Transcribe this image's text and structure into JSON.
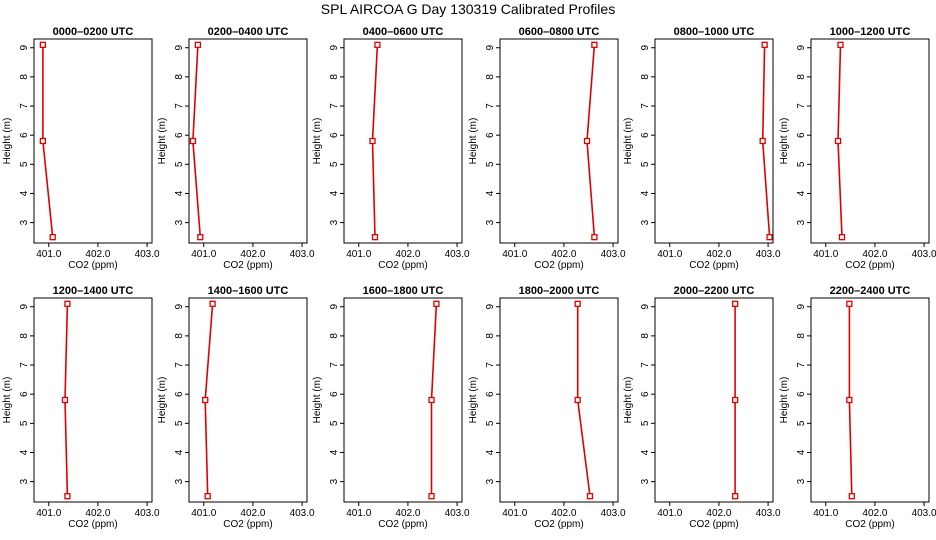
{
  "title": "SPL AIRCOA G  Day 130319  Calibrated Profiles",
  "chart_data": [
    {
      "type": "line",
      "title": "0000–0200 UTC",
      "xlabel": "CO2 (ppm)",
      "ylabel": "Height (m)",
      "xlim": [
        400.7,
        403.1
      ],
      "ylim": [
        2.3,
        9.3
      ],
      "xticks": [
        "401.0",
        "402.0",
        "403.0"
      ],
      "yticks": [
        "3",
        "4",
        "5",
        "6",
        "7",
        "8",
        "9"
      ],
      "series": [
        {
          "color": "#e00000",
          "points": [
            {
              "x": 400.88,
              "y": 9.1
            },
            {
              "x": 400.88,
              "y": 5.8
            },
            {
              "x": 401.08,
              "y": 2.5
            }
          ]
        }
      ]
    },
    {
      "type": "line",
      "title": "0200–0400 UTC",
      "xlabel": "CO2 (ppm)",
      "ylabel": "Height (m)",
      "xlim": [
        400.7,
        403.1
      ],
      "ylim": [
        2.3,
        9.3
      ],
      "xticks": [
        "401.0",
        "402.0",
        "403.0"
      ],
      "yticks": [
        "3",
        "4",
        "5",
        "6",
        "7",
        "8",
        "9"
      ],
      "series": [
        {
          "color": "#e00000",
          "points": [
            {
              "x": 400.88,
              "y": 9.1
            },
            {
              "x": 400.78,
              "y": 5.8
            },
            {
              "x": 400.93,
              "y": 2.5
            }
          ]
        }
      ]
    },
    {
      "type": "line",
      "title": "0400–0600 UTC",
      "xlabel": "CO2 (ppm)",
      "ylabel": "Height (m)",
      "xlim": [
        400.7,
        403.1
      ],
      "ylim": [
        2.3,
        9.3
      ],
      "xticks": [
        "401.0",
        "402.0",
        "403.0"
      ],
      "yticks": [
        "3",
        "4",
        "5",
        "6",
        "7",
        "8",
        "9"
      ],
      "series": [
        {
          "color": "#e00000",
          "points": [
            {
              "x": 401.38,
              "y": 9.1
            },
            {
              "x": 401.28,
              "y": 5.8
            },
            {
              "x": 401.33,
              "y": 2.5
            }
          ]
        }
      ]
    },
    {
      "type": "line",
      "title": "0600–0800 UTC",
      "xlabel": "CO2 (ppm)",
      "ylabel": "Height (m)",
      "xlim": [
        400.7,
        403.1
      ],
      "ylim": [
        2.3,
        9.3
      ],
      "xticks": [
        "401.0",
        "402.0",
        "403.0"
      ],
      "yticks": [
        "3",
        "4",
        "5",
        "6",
        "7",
        "8",
        "9"
      ],
      "series": [
        {
          "color": "#e00000",
          "points": [
            {
              "x": 402.62,
              "y": 9.1
            },
            {
              "x": 402.47,
              "y": 5.8
            },
            {
              "x": 402.62,
              "y": 2.5
            }
          ]
        }
      ]
    },
    {
      "type": "line",
      "title": "0800–1000 UTC",
      "xlabel": "CO2 (ppm)",
      "ylabel": "Height (m)",
      "xlim": [
        400.7,
        403.1
      ],
      "ylim": [
        2.3,
        9.3
      ],
      "xticks": [
        "401.0",
        "402.0",
        "403.0"
      ],
      "yticks": [
        "3",
        "4",
        "5",
        "6",
        "7",
        "8",
        "9"
      ],
      "series": [
        {
          "color": "#e00000",
          "points": [
            {
              "x": 402.93,
              "y": 9.1
            },
            {
              "x": 402.89,
              "y": 5.8
            },
            {
              "x": 403.03,
              "y": 2.5
            }
          ]
        }
      ]
    },
    {
      "type": "line",
      "title": "1000–1200 UTC",
      "xlabel": "CO2 (ppm)",
      "ylabel": "Height (m)",
      "xlim": [
        400.7,
        403.1
      ],
      "ylim": [
        2.3,
        9.3
      ],
      "xticks": [
        "401.0",
        "402.0",
        "403.0"
      ],
      "yticks": [
        "3",
        "4",
        "5",
        "6",
        "7",
        "8",
        "9"
      ],
      "series": [
        {
          "color": "#e00000",
          "points": [
            {
              "x": 401.3,
              "y": 9.1
            },
            {
              "x": 401.25,
              "y": 5.8
            },
            {
              "x": 401.33,
              "y": 2.5
            }
          ]
        }
      ]
    },
    {
      "type": "line",
      "title": "1200–1400 UTC",
      "xlabel": "CO2 (ppm)",
      "ylabel": "Height (m)",
      "xlim": [
        400.7,
        403.1
      ],
      "ylim": [
        2.3,
        9.3
      ],
      "xticks": [
        "401.0",
        "402.0",
        "403.0"
      ],
      "yticks": [
        "3",
        "4",
        "5",
        "6",
        "7",
        "8",
        "9"
      ],
      "series": [
        {
          "color": "#e00000",
          "points": [
            {
              "x": 401.38,
              "y": 9.1
            },
            {
              "x": 401.33,
              "y": 5.8
            },
            {
              "x": 401.38,
              "y": 2.5
            }
          ]
        }
      ]
    },
    {
      "type": "line",
      "title": "1400–1600 UTC",
      "xlabel": "CO2 (ppm)",
      "ylabel": "Height (m)",
      "xlim": [
        400.7,
        403.1
      ],
      "ylim": [
        2.3,
        9.3
      ],
      "xticks": [
        "401.0",
        "402.0",
        "403.0"
      ],
      "yticks": [
        "3",
        "4",
        "5",
        "6",
        "7",
        "8",
        "9"
      ],
      "series": [
        {
          "color": "#e00000",
          "points": [
            {
              "x": 401.18,
              "y": 9.1
            },
            {
              "x": 401.03,
              "y": 5.8
            },
            {
              "x": 401.08,
              "y": 2.5
            }
          ]
        }
      ]
    },
    {
      "type": "line",
      "title": "1600–1800 UTC",
      "xlabel": "CO2 (ppm)",
      "ylabel": "Height (m)",
      "xlim": [
        400.7,
        403.1
      ],
      "ylim": [
        2.3,
        9.3
      ],
      "xticks": [
        "401.0",
        "402.0",
        "403.0"
      ],
      "yticks": [
        "3",
        "4",
        "5",
        "6",
        "7",
        "8",
        "9"
      ],
      "series": [
        {
          "color": "#e00000",
          "points": [
            {
              "x": 402.58,
              "y": 9.1
            },
            {
              "x": 402.48,
              "y": 5.8
            },
            {
              "x": 402.48,
              "y": 2.5
            }
          ]
        }
      ]
    },
    {
      "type": "line",
      "title": "1800–2000 UTC",
      "xlabel": "CO2 (ppm)",
      "ylabel": "Height (m)",
      "xlim": [
        400.7,
        403.1
      ],
      "ylim": [
        2.3,
        9.3
      ],
      "xticks": [
        "401.0",
        "402.0",
        "403.0"
      ],
      "yticks": [
        "3",
        "4",
        "5",
        "6",
        "7",
        "8",
        "9"
      ],
      "series": [
        {
          "color": "#e00000",
          "points": [
            {
              "x": 402.28,
              "y": 9.1
            },
            {
              "x": 402.28,
              "y": 5.8
            },
            {
              "x": 402.53,
              "y": 2.5
            }
          ]
        }
      ]
    },
    {
      "type": "line",
      "title": "2000–2200 UTC",
      "xlabel": "CO2 (ppm)",
      "ylabel": "Height (m)",
      "xlim": [
        400.7,
        403.1
      ],
      "ylim": [
        2.3,
        9.3
      ],
      "xticks": [
        "401.0",
        "402.0",
        "403.0"
      ],
      "yticks": [
        "3",
        "4",
        "5",
        "6",
        "7",
        "8",
        "9"
      ],
      "series": [
        {
          "color": "#e00000",
          "points": [
            {
              "x": 402.33,
              "y": 9.1
            },
            {
              "x": 402.33,
              "y": 5.8
            },
            {
              "x": 402.33,
              "y": 2.5
            }
          ]
        }
      ]
    },
    {
      "type": "line",
      "title": "2200–2400 UTC",
      "xlabel": "CO2 (ppm)",
      "ylabel": "Height (m)",
      "xlim": [
        400.7,
        403.1
      ],
      "ylim": [
        2.3,
        9.3
      ],
      "xticks": [
        "401.0",
        "402.0",
        "403.0"
      ],
      "yticks": [
        "3",
        "4",
        "5",
        "6",
        "7",
        "8",
        "9"
      ],
      "series": [
        {
          "color": "#e00000",
          "points": [
            {
              "x": 401.48,
              "y": 9.1
            },
            {
              "x": 401.48,
              "y": 5.8
            },
            {
              "x": 401.53,
              "y": 2.5
            }
          ]
        }
      ]
    }
  ]
}
